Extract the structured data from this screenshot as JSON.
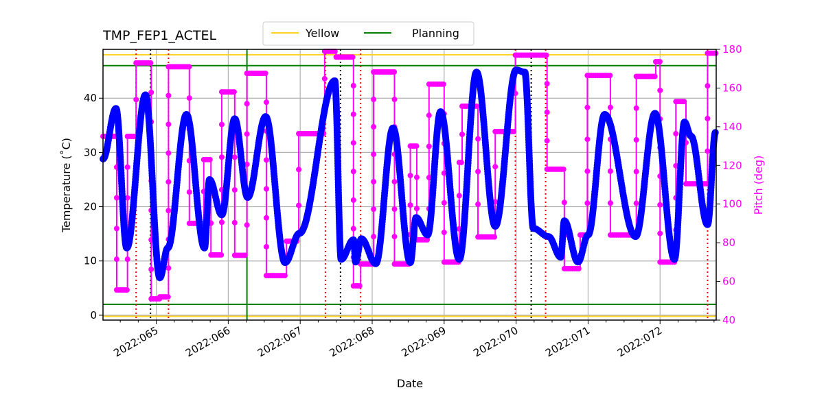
{
  "chart_data": {
    "type": "line",
    "title": "TMP_FEP1_ACTEL",
    "xlabel": "Date",
    "ylabel": "Temperature ($^\\circ$C)",
    "ylabel_display": "Temperature (˚C)",
    "y2label": "Pitch (deg)",
    "xlim": [
      64.26,
      72.78
    ],
    "ylim": [
      -0.9,
      49.0
    ],
    "y2lim": [
      40,
      180
    ],
    "x_ticks": [
      65,
      66,
      67,
      68,
      69,
      70,
      71,
      72
    ],
    "x_tick_labels": [
      "2022:065",
      "2022:066",
      "2022:067",
      "2022:068",
      "2022:069",
      "2022:070",
      "2022:071",
      "2022:072"
    ],
    "y_ticks": [
      0,
      10,
      20,
      30,
      40
    ],
    "y_tick_labels": [
      "0",
      "10",
      "20",
      "30",
      "40"
    ],
    "y2_ticks": [
      40,
      60,
      80,
      100,
      120,
      140,
      160,
      180
    ],
    "y2_tick_labels": [
      "40",
      "60",
      "80",
      "100",
      "120",
      "140",
      "160",
      "180"
    ],
    "grid": true,
    "legend": {
      "placement": "top-center",
      "entries": [
        {
          "label": "Yellow",
          "color": "#ffd21f"
        },
        {
          "label": "Planning",
          "color": "#008000"
        }
      ]
    },
    "hlines": [
      {
        "kind": "Yellow",
        "y": 48,
        "color": "#ffd21f"
      },
      {
        "kind": "Yellow",
        "y": -0.2,
        "color": "#ffd21f"
      },
      {
        "kind": "Planning",
        "y": 46,
        "color": "#008000"
      },
      {
        "kind": "Planning",
        "y": 2,
        "color": "#008000"
      }
    ],
    "vlines": [
      {
        "x": 66.26,
        "color": "#008000",
        "style": "solid"
      },
      {
        "x": 64.72,
        "color": "#ff0000",
        "style": "dotted"
      },
      {
        "x": 65.17,
        "color": "#ff0000",
        "style": "dotted"
      },
      {
        "x": 67.35,
        "color": "#ff0000",
        "style": "dotted"
      },
      {
        "x": 67.84,
        "color": "#ff0000",
        "style": "dotted"
      },
      {
        "x": 69.99,
        "color": "#ff0000",
        "style": "dotted"
      },
      {
        "x": 70.41,
        "color": "#ff0000",
        "style": "dotted"
      },
      {
        "x": 72.66,
        "color": "#ff0000",
        "style": "dotted"
      },
      {
        "x": 64.92,
        "color": "#000000",
        "style": "dotted"
      },
      {
        "x": 67.56,
        "color": "#000000",
        "style": "dotted"
      },
      {
        "x": 70.21,
        "color": "#000000",
        "style": "dotted"
      }
    ],
    "series": [
      {
        "axis": "left",
        "color": "#0000ff",
        "points": [
          [
            64.26,
            28.8
          ],
          [
            64.44,
            38.1
          ],
          [
            64.59,
            12.4
          ],
          [
            64.85,
            40.6
          ],
          [
            65.05,
            6.9
          ],
          [
            65.16,
            12.4
          ],
          [
            65.42,
            37.0
          ],
          [
            65.67,
            12.4
          ],
          [
            65.74,
            25.0
          ],
          [
            65.91,
            18.5
          ],
          [
            66.09,
            36.2
          ],
          [
            66.27,
            21.7
          ],
          [
            66.52,
            36.6
          ],
          [
            66.79,
            9.7
          ],
          [
            66.99,
            15.1
          ],
          [
            67.48,
            43.2
          ],
          [
            67.57,
            10.3
          ],
          [
            67.74,
            13.9
          ],
          [
            67.77,
            9.8
          ],
          [
            67.85,
            14.1
          ],
          [
            68.05,
            9.5
          ],
          [
            68.29,
            34.5
          ],
          [
            68.53,
            9.7
          ],
          [
            68.61,
            18.0
          ],
          [
            68.77,
            14.8
          ],
          [
            68.95,
            37.5
          ],
          [
            69.21,
            10.3
          ],
          [
            69.45,
            44.8
          ],
          [
            69.71,
            16.4
          ],
          [
            70.0,
            45.2
          ],
          [
            70.12,
            44.8
          ],
          [
            70.24,
            16.0
          ],
          [
            70.45,
            14.5
          ],
          [
            70.62,
            10.7
          ],
          [
            70.67,
            17.4
          ],
          [
            70.86,
            9.8
          ],
          [
            71.0,
            14.8
          ],
          [
            71.23,
            37.0
          ],
          [
            71.66,
            14.5
          ],
          [
            71.93,
            37.2
          ],
          [
            72.2,
            10.3
          ],
          [
            72.34,
            35.6
          ],
          [
            72.43,
            33.0
          ],
          [
            72.66,
            16.7
          ],
          [
            72.77,
            33.7
          ]
        ]
      },
      {
        "axis": "right",
        "color": "#ff00ff",
        "steps": [
          [
            64.26,
            135
          ],
          [
            64.45,
            55.6
          ],
          [
            64.6,
            135
          ],
          [
            64.72,
            173
          ],
          [
            64.93,
            51
          ],
          [
            65.05,
            52
          ],
          [
            65.17,
            171
          ],
          [
            65.46,
            90
          ],
          [
            65.66,
            123
          ],
          [
            65.76,
            73.7
          ],
          [
            65.91,
            158
          ],
          [
            66.09,
            73.5
          ],
          [
            66.26,
            167.6
          ],
          [
            66.53,
            63
          ],
          [
            66.81,
            80.8
          ],
          [
            66.98,
            136.4
          ],
          [
            67.34,
            179
          ],
          [
            67.5,
            176
          ],
          [
            67.74,
            57.7
          ],
          [
            67.84,
            69
          ],
          [
            68.02,
            168.3
          ],
          [
            68.31,
            69
          ],
          [
            68.53,
            130
          ],
          [
            68.62,
            81.5
          ],
          [
            68.79,
            162
          ],
          [
            69.0,
            70
          ],
          [
            69.21,
            121.5
          ],
          [
            69.25,
            150.6
          ],
          [
            69.47,
            83
          ],
          [
            69.71,
            137.5
          ],
          [
            69.99,
            177
          ],
          [
            70.43,
            118
          ],
          [
            70.67,
            66.6
          ],
          [
            70.89,
            84
          ],
          [
            70.99,
            166.5
          ],
          [
            71.31,
            84
          ],
          [
            71.67,
            166
          ],
          [
            71.94,
            173.6
          ],
          [
            72.0,
            70
          ],
          [
            72.22,
            153
          ],
          [
            72.36,
            110.5
          ],
          [
            72.66,
            178
          ],
          [
            72.78,
            178
          ]
        ]
      }
    ]
  }
}
